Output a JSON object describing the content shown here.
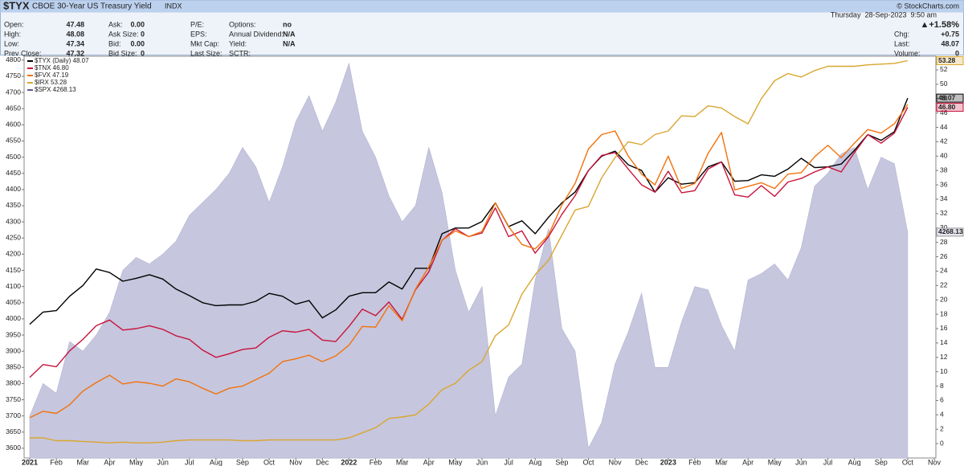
{
  "header": {
    "symbol": "$TYX",
    "name": "CBOE 30-Year US Treasury Yield",
    "exchange": "INDX",
    "copyright": "© StockCharts.com",
    "date": "Thursday  28-Sep-2023  9:50 am",
    "change_pct": "▲+1.58%",
    "quote_columns": [
      [
        {
          "label": "Open:",
          "value": "47.48"
        },
        {
          "label": "High:",
          "value": "48.08"
        },
        {
          "label": "Low:",
          "value": "47.34"
        },
        {
          "label": "Prev Close:",
          "value": "47.32"
        }
      ],
      [
        {
          "label": "Ask:",
          "value": "0.00"
        },
        {
          "label": "Ask Size:",
          "value": "0"
        },
        {
          "label": "Bid:",
          "value": "0.00"
        },
        {
          "label": "Bid Size:",
          "value": "0"
        }
      ],
      [
        {
          "label": "P/E:"
        },
        {
          "label": "EPS:"
        },
        {
          "label": "Mkt Cap:"
        },
        {
          "label": "Last Size:"
        }
      ],
      [
        {
          "label": "Options:",
          "value": "no"
        },
        {
          "label": "Annual Dividend:",
          "value": "N/A"
        },
        {
          "label": "Yield:",
          "value": "N/A"
        },
        {
          "label": "SCTR:"
        }
      ]
    ],
    "quote_right": [
      {
        "label": "Chg:",
        "value": "+0.75"
      },
      {
        "label": "Last:",
        "value": "48.07"
      },
      {
        "label": "Volume:",
        "value": "0"
      }
    ]
  },
  "chart_data": {
    "type": "line",
    "categories": [
      "2021",
      null,
      "Feb",
      null,
      "Mar",
      null,
      "Apr",
      null,
      "May",
      null,
      "Jun",
      null,
      "Jul",
      null,
      "Aug",
      null,
      "Sep",
      null,
      "Oct",
      null,
      "Nov",
      null,
      "Dec",
      null,
      "2022",
      null,
      "Feb",
      null,
      "Mar",
      null,
      "Apr",
      null,
      "May",
      null,
      "Jun",
      null,
      "Jul",
      null,
      "Aug",
      null,
      "Sep",
      null,
      "Oct",
      null,
      "Nov",
      null,
      "Dec",
      null,
      "2023",
      null,
      "Feb",
      null,
      "Mar",
      null,
      "Apr",
      null,
      "May",
      null,
      "Jun",
      null,
      "Jul",
      null,
      "Aug",
      null,
      "Sep",
      null,
      "Oct",
      null,
      "Nov"
    ],
    "ylim": [
      3570,
      4812
    ],
    "yticks": [
      3600,
      3650,
      3700,
      3750,
      3800,
      3850,
      3900,
      3950,
      4000,
      4050,
      4100,
      4150,
      4200,
      4250,
      4300,
      4350,
      4400,
      4450,
      4500,
      4550,
      4600,
      4650,
      4700,
      4750,
      4800
    ],
    "y2lim": [
      -2,
      53.9
    ],
    "y2ticks": [
      0,
      2,
      4,
      6,
      8,
      10,
      12,
      14,
      16,
      18,
      20,
      22,
      24,
      26,
      28,
      30,
      32,
      34,
      36,
      38,
      40,
      42,
      44,
      46,
      48,
      50,
      52
    ],
    "series": [
      {
        "name": "$TYX (Daily) 48.07",
        "color": "#000000",
        "axis": "y2",
        "end_label": "48.07",
        "values": [
          16.6,
          18.3,
          18.5,
          20.5,
          22.0,
          24.3,
          23.8,
          22.6,
          23.0,
          23.5,
          22.9,
          21.5,
          20.6,
          19.6,
          19.2,
          19.3,
          19.3,
          19.8,
          20.9,
          20.5,
          19.4,
          19.9,
          17.5,
          18.6,
          20.5,
          21.0,
          21.0,
          22.5,
          21.5,
          24.4,
          24.4,
          29.2,
          30.0,
          30.0,
          30.9,
          33.5,
          30.2,
          31.0,
          29.2,
          31.5,
          33.5,
          35.0,
          38.0,
          40.0,
          40.7,
          38.8,
          38.0,
          35.0,
          37.0,
          36.1,
          36.3,
          38.5,
          39.2,
          36.5,
          36.6,
          37.4,
          37.2,
          38.2,
          39.7,
          38.4,
          38.5,
          38.9,
          40.8,
          43.0,
          42.2,
          43.4,
          48.07,
          null,
          null
        ]
      },
      {
        "name": "$TNX 46.80",
        "color": "#c8143c",
        "axis": "y2",
        "end_label": "46.80",
        "values": [
          9.2,
          11.0,
          10.7,
          12.9,
          14.5,
          16.4,
          17.2,
          15.8,
          16.0,
          16.4,
          15.9,
          15.0,
          14.5,
          13.0,
          12.0,
          12.5,
          13.1,
          13.3,
          14.8,
          15.7,
          15.5,
          15.9,
          14.4,
          14.2,
          16.3,
          18.7,
          17.8,
          19.7,
          17.3,
          21.4,
          23.9,
          28.3,
          29.9,
          28.8,
          29.3,
          32.8,
          28.8,
          29.6,
          26.5,
          28.8,
          31.9,
          34.5,
          38.0,
          40.1,
          40.5,
          38.2,
          36.0,
          35.0,
          37.9,
          34.9,
          35.2,
          38.2,
          39.2,
          34.6,
          34.3,
          35.9,
          34.4,
          36.4,
          36.9,
          37.8,
          38.5,
          37.8,
          40.5,
          43.0,
          41.8,
          43.2,
          46.8,
          null,
          null
        ]
      },
      {
        "name": "$FVX 47.19",
        "color": "#f2720c",
        "axis": "y2",
        "values": [
          3.6,
          4.5,
          4.2,
          5.4,
          7.3,
          8.5,
          9.5,
          8.3,
          8.6,
          8.4,
          8.0,
          9.0,
          8.6,
          7.7,
          6.9,
          7.7,
          8.0,
          8.9,
          9.8,
          11.4,
          11.8,
          12.3,
          11.4,
          12.2,
          13.7,
          16.3,
          16.2,
          19.2,
          17.1,
          21.5,
          24.6,
          28.3,
          29.6,
          28.8,
          29.5,
          33.5,
          30.2,
          27.7,
          27.1,
          29.0,
          33.2,
          36.2,
          41.0,
          43.0,
          43.5,
          40.0,
          37.5,
          36.0,
          40.0,
          35.5,
          36.2,
          40.4,
          43.3,
          35.3,
          35.8,
          36.3,
          35.5,
          37.5,
          37.7,
          39.9,
          41.5,
          39.8,
          41.8,
          43.7,
          43.2,
          44.5,
          47.19,
          null,
          null
        ]
      },
      {
        "name": "$IRX 53.28",
        "color": "#d9a62e",
        "axis": "y2",
        "end_label": "53.28",
        "values": [
          0.8,
          0.8,
          0.4,
          0.4,
          0.3,
          0.2,
          0.1,
          0.2,
          0.1,
          0.1,
          0.2,
          0.4,
          0.5,
          0.5,
          0.5,
          0.5,
          0.4,
          0.4,
          0.5,
          0.5,
          0.5,
          0.5,
          0.5,
          0.5,
          0.8,
          1.5,
          2.2,
          3.5,
          3.7,
          4.0,
          5.5,
          7.5,
          8.4,
          10.2,
          11.4,
          15.0,
          16.5,
          20.8,
          23.5,
          25.5,
          29.0,
          32.5,
          33.0,
          37.0,
          39.8,
          42.0,
          41.6,
          43.0,
          43.5,
          45.6,
          45.5,
          47.0,
          46.7,
          45.5,
          44.5,
          48.0,
          50.5,
          51.5,
          51.0,
          51.9,
          52.5,
          52.5,
          52.5,
          52.7,
          52.8,
          52.9,
          53.28,
          null,
          null
        ]
      },
      {
        "name": "$SPX 4268.13",
        "color": "#c6c6de",
        "type": "area",
        "end_label": "4268.13",
        "values": [
          3700,
          3800,
          3770,
          3930,
          3900,
          3950,
          4020,
          4150,
          4190,
          4170,
          4200,
          4240,
          4320,
          4360,
          4400,
          4450,
          4530,
          4470,
          4360,
          4470,
          4610,
          4690,
          4580,
          4670,
          4790,
          4580,
          4500,
          4380,
          4300,
          4350,
          4530,
          4390,
          4150,
          4020,
          4100,
          3700,
          3820,
          3860,
          4120,
          4280,
          3970,
          3900,
          3600,
          3680,
          3860,
          3960,
          4080,
          3850,
          3850,
          3990,
          4100,
          4090,
          3980,
          3900,
          4120,
          4140,
          4170,
          4120,
          4220,
          4410,
          4450,
          4510,
          4530,
          4400,
          4500,
          4480,
          4268.13,
          null,
          null
        ]
      }
    ]
  }
}
